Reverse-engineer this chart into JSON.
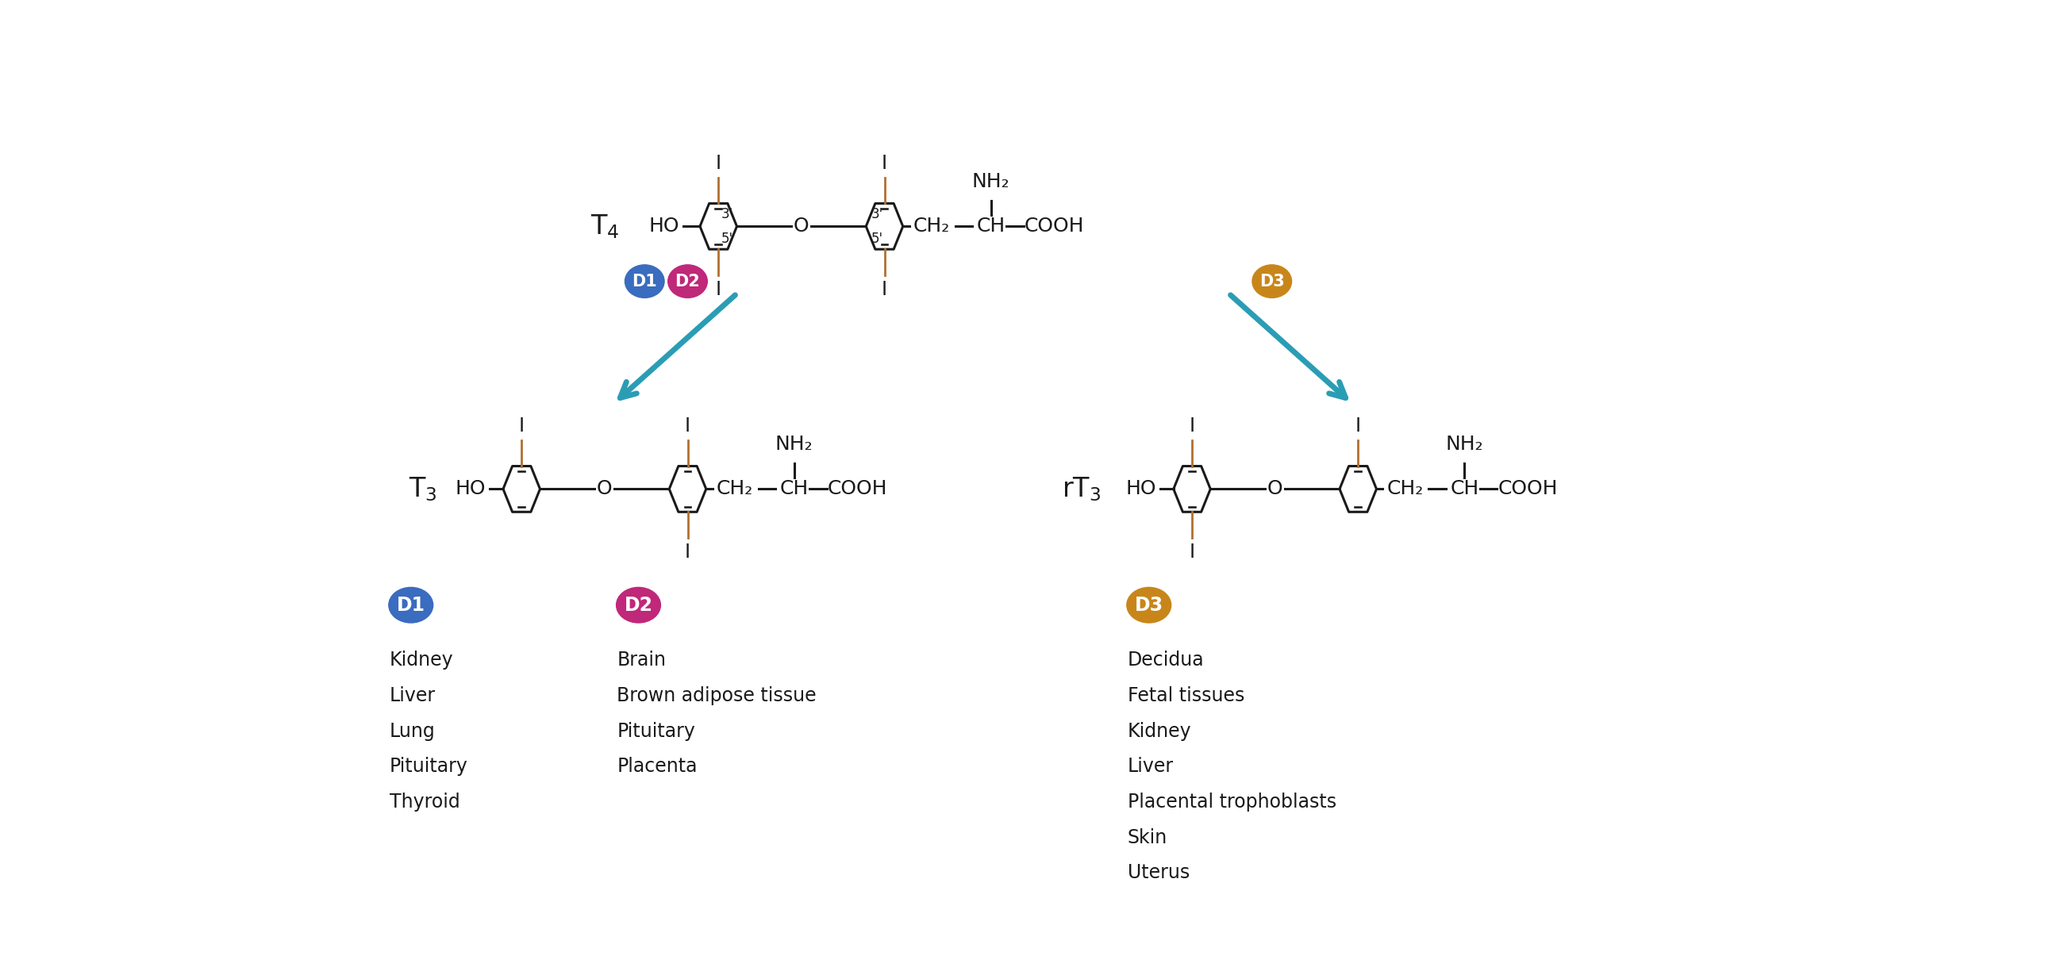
{
  "bg_color": "#ffffff",
  "d1_color": "#3a6cbf",
  "d2_color": "#c0287a",
  "d3_color": "#c8861a",
  "arrow_color": "#2a9db5",
  "line_color": "#1a1a1a",
  "iodine_color": "#b07030",
  "d1_label": "D1",
  "d2_label": "D2",
  "d3_label": "D3",
  "d1_tissues": [
    "Kidney",
    "Liver",
    "Lung",
    "Pituitary",
    "Thyroid"
  ],
  "d2_tissues": [
    "Brain",
    "Brown adipose tissue",
    "Pituitary",
    "Placenta"
  ],
  "d3_tissues": [
    "Decidua",
    "Fetal tissues",
    "Kidney",
    "Liver",
    "Placental trophoblasts",
    "Skin",
    "Uterus"
  ],
  "nh2_label": "NH₂",
  "ch2_label": "CH₂",
  "ch_label": "CH",
  "cooh_label": "COOH",
  "ho_label": "HO",
  "o_label": "O",
  "i_label": "I"
}
